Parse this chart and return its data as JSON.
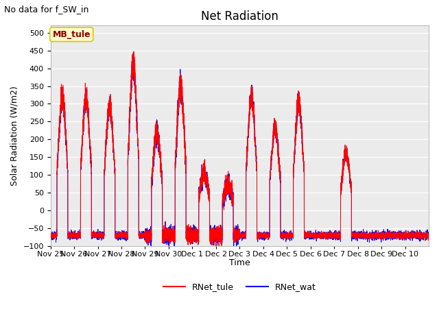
{
  "title": "Net Radiation",
  "xlabel": "Time",
  "ylabel": "Solar Radiation (W/m2)",
  "note": "No data for f_SW_in",
  "site_label": "MB_tule",
  "ylim": [
    -100,
    520
  ],
  "yticks": [
    -100,
    -50,
    0,
    50,
    100,
    150,
    200,
    250,
    300,
    350,
    400,
    450,
    500
  ],
  "line1_color": "#ff0000",
  "line1_label": "RNet_tule",
  "line2_color": "#0000ff",
  "line2_label": "RNet_wat",
  "bg_color": "#ebebeb",
  "axes_bg": "#ebebeb",
  "title_fontsize": 12,
  "label_fontsize": 9,
  "tick_fontsize": 8,
  "note_fontsize": 9,
  "site_fontsize": 9,
  "xtick_labels": [
    "Nov 25",
    "Nov 26",
    "Nov 27",
    "Nov 28",
    "Nov 29",
    "Nov 30",
    "Dec 1",
    "Dec 2",
    "Dec 3",
    "Dec 4",
    "Dec 5",
    "Dec 6",
    "Dec 7",
    "Dec 8",
    "Dec 9",
    "Dec 10"
  ],
  "day_peaks_tule": [
    350,
    350,
    325,
    450,
    245,
    380,
    120,
    80,
    350,
    255,
    335,
    0,
    175,
    0,
    0,
    0
  ],
  "day_peaks_wat": [
    300,
    305,
    290,
    330,
    200,
    370,
    120,
    75,
    350,
    250,
    305,
    0,
    170,
    0,
    0,
    0
  ],
  "night_base": -70,
  "n_days": 16,
  "n_per_day": 480
}
